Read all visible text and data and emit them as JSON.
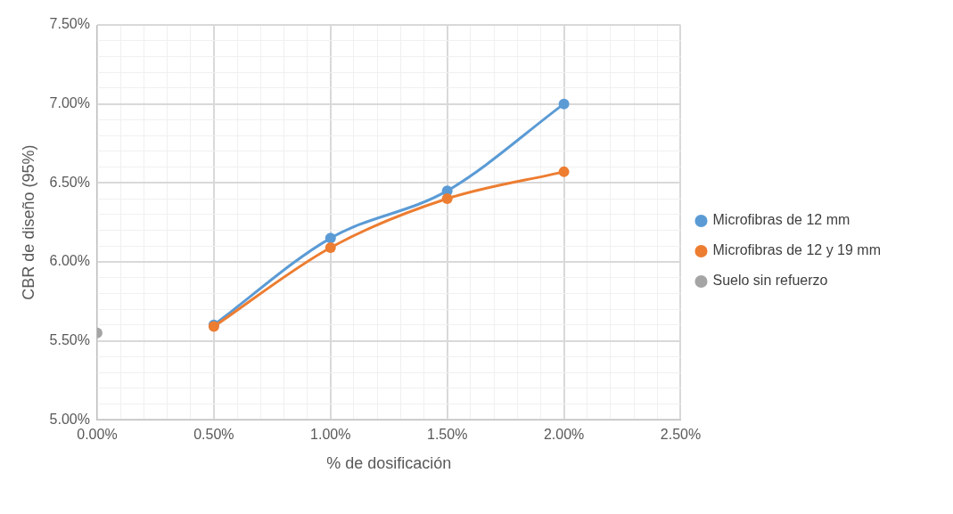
{
  "chart_data": {
    "type": "line",
    "xlabel": "% de dosificación",
    "ylabel": "CBR de diseño (95%)",
    "xlim": [
      0,
      2.5
    ],
    "ylim": [
      5,
      7.5
    ],
    "xticks": [
      {
        "value": 0,
        "label": "0.00%"
      },
      {
        "value": 0.1,
        "label": null
      },
      {
        "value": 0.2,
        "label": null
      },
      {
        "value": 0.3,
        "label": null
      },
      {
        "value": 0.4,
        "label": null
      },
      {
        "value": 0.5,
        "label": "0.50%"
      },
      {
        "value": 0.6,
        "label": null
      },
      {
        "value": 0.7,
        "label": null
      },
      {
        "value": 0.8,
        "label": null
      },
      {
        "value": 0.9,
        "label": null
      },
      {
        "value": 1,
        "label": "1.00%"
      },
      {
        "value": 1.1,
        "label": null
      },
      {
        "value": 1.2,
        "label": null
      },
      {
        "value": 1.3,
        "label": null
      },
      {
        "value": 1.4,
        "label": null
      },
      {
        "value": 1.5,
        "label": "1.50%"
      },
      {
        "value": 1.6,
        "label": null
      },
      {
        "value": 1.7,
        "label": null
      },
      {
        "value": 1.8,
        "label": null
      },
      {
        "value": 1.9,
        "label": null
      },
      {
        "value": 2,
        "label": "2.00%"
      },
      {
        "value": 2.1,
        "label": null
      },
      {
        "value": 2.2,
        "label": null
      },
      {
        "value": 2.3,
        "label": null
      },
      {
        "value": 2.4,
        "label": null
      },
      {
        "value": 2.5,
        "label": "2.50%"
      }
    ],
    "yticks": [
      {
        "value": 5,
        "label": "5.00%"
      },
      {
        "value": 5.1,
        "label": null
      },
      {
        "value": 5.2,
        "label": null
      },
      {
        "value": 5.3,
        "label": null
      },
      {
        "value": 5.4,
        "label": null
      },
      {
        "value": 5.5,
        "label": "5.50%"
      },
      {
        "value": 5.6,
        "label": null
      },
      {
        "value": 5.7,
        "label": null
      },
      {
        "value": 5.8,
        "label": null
      },
      {
        "value": 5.9,
        "label": null
      },
      {
        "value": 6,
        "label": "6.00%"
      },
      {
        "value": 6.1,
        "label": null
      },
      {
        "value": 6.2,
        "label": null
      },
      {
        "value": 6.3,
        "label": null
      },
      {
        "value": 6.4,
        "label": null
      },
      {
        "value": 6.5,
        "label": "6.50%"
      },
      {
        "value": 6.6,
        "label": null
      },
      {
        "value": 6.7,
        "label": null
      },
      {
        "value": 6.8,
        "label": null
      },
      {
        "value": 6.9,
        "label": null
      },
      {
        "value": 7,
        "label": "7.00%"
      },
      {
        "value": 7.1,
        "label": null
      },
      {
        "value": 7.2,
        "label": null
      },
      {
        "value": 7.3,
        "label": null
      },
      {
        "value": 7.4,
        "label": null
      },
      {
        "value": 7.5,
        "label": "7.50%"
      }
    ],
    "grid": true,
    "legend": "right",
    "marker": "circle",
    "line_style": "solid",
    "series": [
      {
        "name": "Microfibras de 12 mm",
        "color": "#5b9bd5",
        "x": [
          0.5,
          1,
          1.5,
          2
        ],
        "values": [
          5.6,
          6.15,
          6.45,
          7.0
        ]
      },
      {
        "name": "Microfibras de 12 y 19 mm",
        "color": "#ed7d31",
        "x": [
          0.5,
          1,
          1.5,
          2
        ],
        "values": [
          5.59,
          6.09,
          6.4,
          6.57
        ]
      },
      {
        "name": "Suelo sin refuerzo",
        "color": "#a5a5a5",
        "x": [
          0
        ],
        "values": [
          5.55
        ]
      }
    ]
  }
}
